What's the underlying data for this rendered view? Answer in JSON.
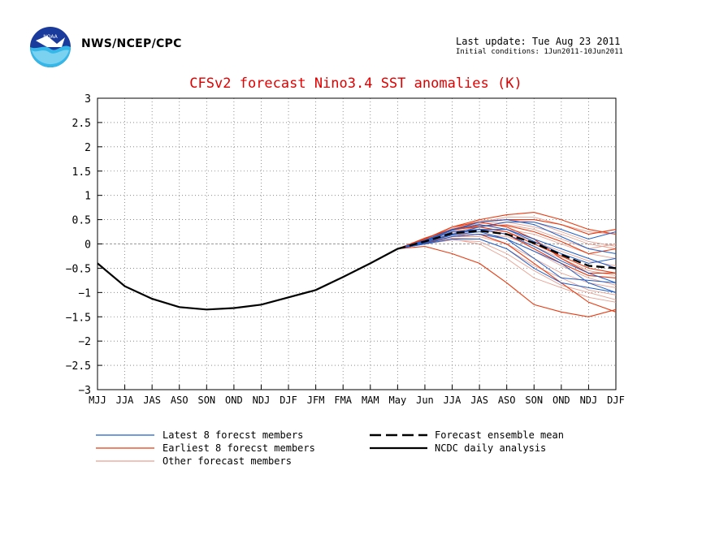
{
  "header": {
    "agency": "NWS/NCEP/CPC",
    "last_update": "Last update: Tue Aug 23 2011",
    "initial_conditions": "Initial conditions: 1Jun2011-10Jun2011",
    "logo_icon": "noaa-logo-icon"
  },
  "colors": {
    "title": "#e00000",
    "latest": "#1f5fc8",
    "earliest": "#e83a10",
    "other": "#e8a090",
    "mean": "#000000",
    "observed": "#000000"
  },
  "chart_data": {
    "type": "line",
    "title": "CFSv2 forecast Nino3.4 SST anomalies (K)",
    "xlabel": "",
    "ylabel": "",
    "categories": [
      "MJJ",
      "JJA",
      "JAS",
      "ASO",
      "SON",
      "OND",
      "NDJ",
      "DJF",
      "JFM",
      "FMA",
      "MAM",
      "May",
      "Jun",
      "JJA",
      "JAS",
      "ASO",
      "SON",
      "OND",
      "NDJ",
      "DJF"
    ],
    "ylim": [
      -3,
      3
    ],
    "yticks": [
      3,
      2.5,
      2,
      1.5,
      1,
      0.5,
      0,
      -0.5,
      -1,
      -1.5,
      -2,
      -2.5,
      -3
    ],
    "ytick_labels": [
      "3",
      "2.5",
      "2",
      "1.5",
      "1",
      "0.5",
      "0",
      "−0.5",
      "−1",
      "−1.5",
      "−2",
      "−2.5",
      "−3"
    ],
    "grid": true,
    "zero_line": true,
    "observed": {
      "name": "NCDC daily analysis",
      "x": [
        0,
        1,
        2,
        3,
        4,
        5,
        6,
        7,
        8,
        9,
        10,
        11
      ],
      "values": [
        -0.4,
        -0.87,
        -1.13,
        -1.3,
        -1.35,
        -1.32,
        -1.25,
        -1.1,
        -0.95,
        -0.68,
        -0.4,
        -0.1
      ]
    },
    "ensemble_mean": {
      "name": "Forecast ensemble mean",
      "x": [
        11,
        12,
        13,
        14,
        15,
        16,
        17,
        18,
        19
      ],
      "values": [
        -0.1,
        0.05,
        0.22,
        0.27,
        0.2,
        0.02,
        -0.22,
        -0.45,
        -0.5
      ]
    },
    "members": [
      {
        "group": "latest",
        "values": [
          -0.1,
          0.02,
          0.2,
          0.35,
          0.45,
          0.45,
          0.3,
          0.1,
          0.25
        ]
      },
      {
        "group": "latest",
        "values": [
          -0.1,
          0.05,
          0.25,
          0.3,
          0.2,
          -0.05,
          -0.35,
          -0.6,
          -0.8
        ]
      },
      {
        "group": "latest",
        "values": [
          -0.1,
          0.0,
          0.15,
          0.2,
          0.1,
          -0.15,
          -0.4,
          -0.8,
          -1.0
        ]
      },
      {
        "group": "latest",
        "values": [
          -0.1,
          0.08,
          0.3,
          0.4,
          0.3,
          0.05,
          -0.2,
          -0.4,
          -0.3
        ]
      },
      {
        "group": "latest",
        "values": [
          -0.1,
          0.0,
          0.1,
          0.1,
          -0.1,
          -0.5,
          -0.8,
          -0.9,
          -1.0
        ]
      },
      {
        "group": "latest",
        "values": [
          -0.1,
          0.05,
          0.2,
          0.3,
          0.3,
          0.1,
          -0.1,
          -0.3,
          -0.5
        ]
      },
      {
        "group": "latest",
        "values": [
          -0.1,
          0.03,
          0.18,
          0.25,
          0.1,
          -0.3,
          -0.7,
          -0.75,
          -0.8
        ]
      },
      {
        "group": "latest",
        "values": [
          -0.1,
          0.06,
          0.28,
          0.45,
          0.5,
          0.4,
          0.15,
          -0.1,
          -0.2
        ]
      },
      {
        "group": "earliest",
        "values": [
          -0.1,
          -0.05,
          -0.2,
          -0.4,
          -0.8,
          -1.25,
          -1.4,
          -1.5,
          -1.35
        ]
      },
      {
        "group": "earliest",
        "values": [
          -0.1,
          0.1,
          0.35,
          0.5,
          0.6,
          0.65,
          0.5,
          0.3,
          0.2
        ]
      },
      {
        "group": "earliest",
        "values": [
          -0.1,
          0.08,
          0.3,
          0.45,
          0.5,
          0.5,
          0.4,
          0.2,
          0.3
        ]
      },
      {
        "group": "earliest",
        "values": [
          -0.1,
          0.05,
          0.25,
          0.3,
          0.2,
          -0.1,
          -0.4,
          -0.65,
          -0.7
        ]
      },
      {
        "group": "earliest",
        "values": [
          -0.1,
          0.1,
          0.35,
          0.45,
          0.35,
          0.1,
          -0.3,
          -0.6,
          -0.6
        ]
      },
      {
        "group": "earliest",
        "values": [
          -0.1,
          0.02,
          0.15,
          0.2,
          0.0,
          -0.4,
          -0.8,
          -1.2,
          -1.4
        ]
      },
      {
        "group": "earliest",
        "values": [
          -0.1,
          0.07,
          0.28,
          0.38,
          0.38,
          0.25,
          0.05,
          -0.2,
          -0.1
        ]
      },
      {
        "group": "earliest",
        "values": [
          -0.1,
          0.12,
          0.3,
          0.35,
          0.25,
          0.0,
          -0.25,
          -0.5,
          -0.6
        ]
      },
      {
        "group": "other",
        "values": [
          -0.1,
          0.04,
          0.2,
          0.3,
          0.3,
          0.2,
          0.0,
          -0.2,
          -0.3
        ]
      },
      {
        "group": "other",
        "values": [
          -0.1,
          0.0,
          0.1,
          0.0,
          -0.3,
          -0.7,
          -0.9,
          -1.1,
          -1.2
        ]
      },
      {
        "group": "other",
        "values": [
          -0.1,
          0.06,
          0.25,
          0.35,
          0.4,
          0.3,
          0.1,
          -0.1,
          0.0
        ]
      },
      {
        "group": "other",
        "values": [
          -0.1,
          0.02,
          0.15,
          0.15,
          0.0,
          -0.3,
          -0.6,
          -0.8,
          -0.9
        ]
      },
      {
        "group": "other",
        "values": [
          -0.1,
          0.08,
          0.3,
          0.45,
          0.55,
          0.55,
          0.4,
          0.25,
          0.2
        ]
      },
      {
        "group": "other",
        "values": [
          -0.1,
          0.05,
          0.2,
          0.25,
          0.1,
          -0.15,
          -0.45,
          -0.7,
          -0.85
        ]
      },
      {
        "group": "other",
        "values": [
          -0.1,
          0.03,
          0.22,
          0.3,
          0.25,
          0.05,
          -0.15,
          -0.35,
          -0.45
        ]
      },
      {
        "group": "other",
        "values": [
          -0.1,
          0.0,
          0.08,
          0.05,
          -0.2,
          -0.55,
          -0.85,
          -1.0,
          -1.15
        ]
      },
      {
        "group": "other",
        "values": [
          -0.1,
          0.07,
          0.28,
          0.42,
          0.45,
          0.35,
          0.2,
          0.0,
          -0.1
        ]
      },
      {
        "group": "other",
        "values": [
          -0.1,
          0.05,
          0.18,
          0.2,
          0.15,
          -0.05,
          -0.3,
          -0.55,
          -0.65
        ]
      },
      {
        "group": "other",
        "values": [
          -0.1,
          0.1,
          0.32,
          0.48,
          0.5,
          0.45,
          0.25,
          0.05,
          -0.05
        ]
      },
      {
        "group": "other",
        "values": [
          -0.1,
          0.02,
          0.12,
          0.1,
          -0.1,
          -0.45,
          -0.7,
          -0.95,
          -1.05
        ]
      }
    ],
    "legend": [
      {
        "label": "Latest 8 forecst members",
        "style": "latest"
      },
      {
        "label": "Earliest 8 forecst members",
        "style": "earliest"
      },
      {
        "label": "Other forecast members",
        "style": "other"
      },
      {
        "label": "Forecast ensemble mean",
        "style": "mean"
      },
      {
        "label": "NCDC daily analysis",
        "style": "observed"
      }
    ]
  }
}
